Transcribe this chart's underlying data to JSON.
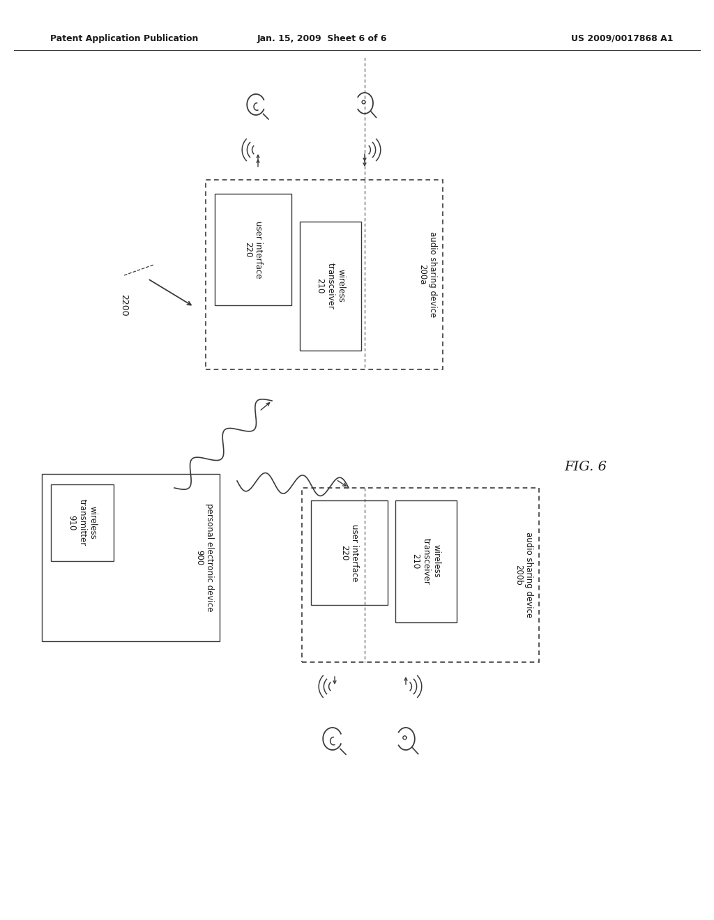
{
  "header_left": "Patent Application Publication",
  "header_mid": "Jan. 15, 2009  Sheet 6 of 6",
  "header_right": "US 2009/0017868 A1",
  "fig_label": "FIG. 6",
  "bg_color": "#ffffff",
  "line_color": "#3a3a3a",
  "text_color": "#1a1a1a"
}
